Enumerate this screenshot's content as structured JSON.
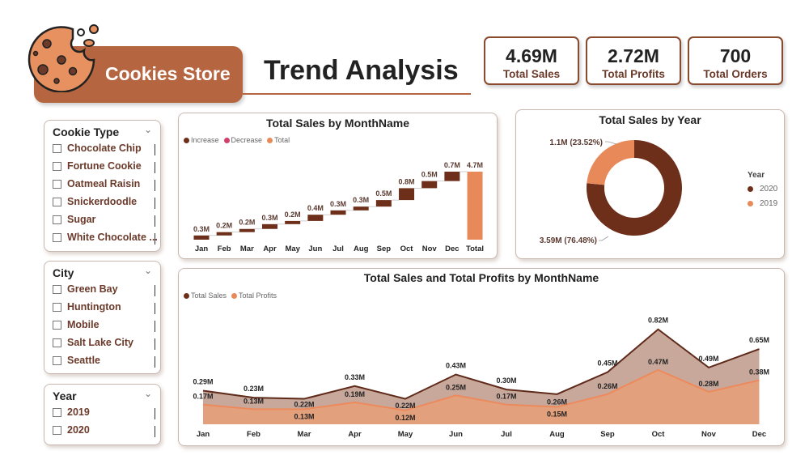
{
  "brand": {
    "name": "Cookies Store"
  },
  "header": {
    "title": "Trend Analysis"
  },
  "kpis": [
    {
      "value": "4.69M",
      "label": "Total Sales"
    },
    {
      "value": "2.72M",
      "label": "Total Profits"
    },
    {
      "value": "700",
      "label": "Total Orders"
    }
  ],
  "slicers": {
    "cookie_type": {
      "title": "Cookie Type",
      "items": [
        "Chocolate Chip",
        "Fortune Cookie",
        "Oatmeal Raisin",
        "Snickerdoodle",
        "Sugar",
        "White Chocolate ..."
      ]
    },
    "city": {
      "title": "City",
      "items": [
        "Green Bay",
        "Huntington",
        "Mobile",
        "Salt Lake City",
        "Seattle"
      ]
    },
    "year": {
      "title": "Year",
      "items": [
        "2019",
        "2020"
      ]
    }
  },
  "colors": {
    "increase": "#6e2f1a",
    "decrease": "#d0406a",
    "total": "#e8895a",
    "sales": "#6e2f1a",
    "profits": "#e8895a"
  },
  "chart_data": [
    {
      "type": "waterfall",
      "title": "Total Sales by MonthName",
      "legend": [
        "Increase",
        "Decrease",
        "Total"
      ],
      "categories": [
        "Jan",
        "Feb",
        "Mar",
        "Apr",
        "May",
        "Jun",
        "Jul",
        "Aug",
        "Sep",
        "Oct",
        "Nov",
        "Dec",
        "Total"
      ],
      "values": [
        0.29,
        0.23,
        0.22,
        0.33,
        0.22,
        0.43,
        0.3,
        0.26,
        0.45,
        0.82,
        0.49,
        0.65,
        4.69
      ],
      "labels": [
        "0.3M",
        "0.2M",
        "0.2M",
        "0.3M",
        "0.2M",
        "0.4M",
        "0.3M",
        "0.3M",
        "0.5M",
        "0.8M",
        "0.5M",
        "0.7M",
        "4.7M"
      ]
    },
    {
      "type": "pie",
      "title": "Total Sales by Year",
      "legend_title": "Year",
      "legend": [
        "2020",
        "2019"
      ],
      "slices": [
        {
          "name": "2020",
          "value": 3.59,
          "label": "3.59M (76.48%)"
        },
        {
          "name": "2019",
          "value": 1.1,
          "label": "1.1M (23.52%)"
        }
      ]
    },
    {
      "type": "area",
      "title": "Total Sales and Total Profits by MonthName",
      "categories": [
        "Jan",
        "Feb",
        "Mar",
        "Apr",
        "May",
        "Jun",
        "Jul",
        "Aug",
        "Sep",
        "Oct",
        "Nov",
        "Dec"
      ],
      "series": [
        {
          "name": "Total Sales",
          "values": [
            0.29,
            0.23,
            0.22,
            0.33,
            0.22,
            0.43,
            0.3,
            0.26,
            0.45,
            0.82,
            0.49,
            0.65
          ],
          "labels": [
            "0.29M",
            "0.23M",
            "0.22M",
            "0.33M",
            "0.22M",
            "0.43M",
            "0.30M",
            "0.26M",
            "0.45M",
            "0.82M",
            "0.49M",
            "0.65M"
          ]
        },
        {
          "name": "Total Profits",
          "values": [
            0.17,
            0.13,
            0.13,
            0.19,
            0.12,
            0.25,
            0.17,
            0.15,
            0.26,
            0.47,
            0.28,
            0.38
          ],
          "labels": [
            "0.17M",
            "0.13M",
            "0.13M",
            "0.19M",
            "0.12M",
            "0.25M",
            "0.17M",
            "0.15M",
            "0.26M",
            "0.47M",
            "0.28M",
            "0.38M"
          ]
        }
      ]
    }
  ]
}
